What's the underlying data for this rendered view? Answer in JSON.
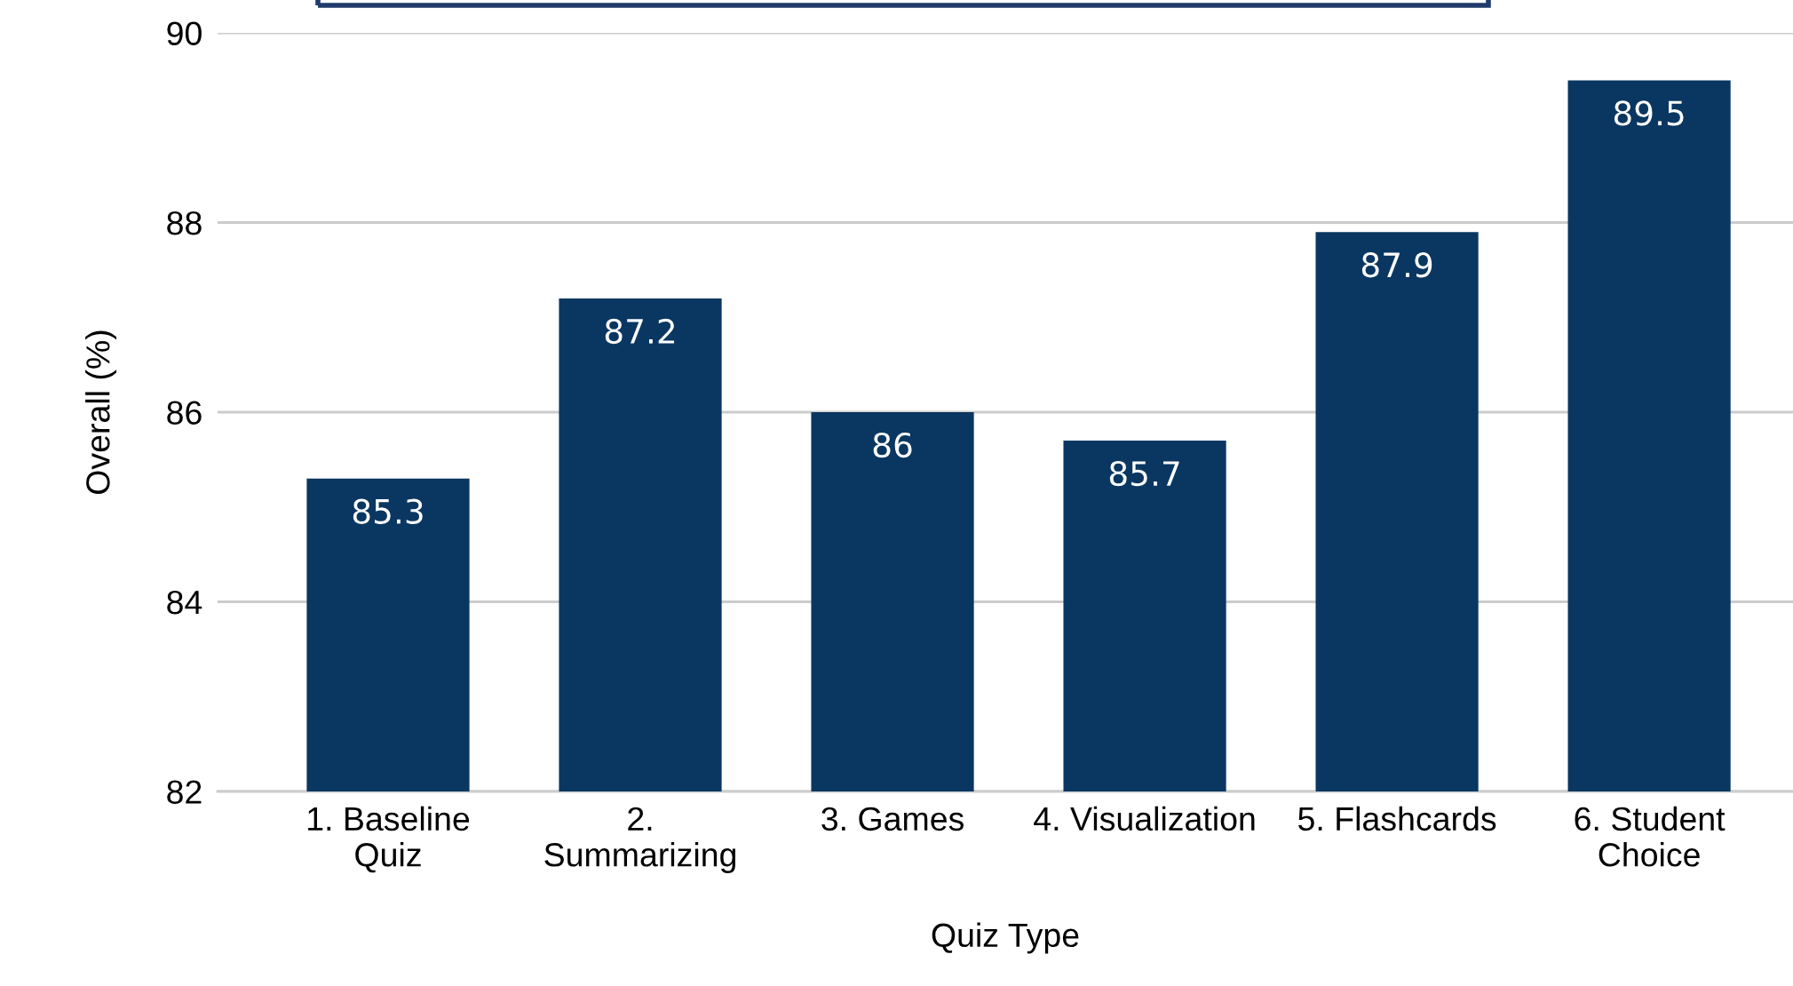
{
  "chart_data": {
    "type": "bar",
    "xlabel": "Quiz Type",
    "ylabel": "Overall (%)",
    "categories": [
      "1. Baseline\nQuiz",
      "2.\nSummarizing",
      "3. Games",
      "4. Visualization",
      "5. Flashcards",
      "6. Student\nChoice"
    ],
    "values": [
      85.3,
      87.2,
      86,
      85.7,
      87.9,
      89.5
    ],
    "color": "#0a3761",
    "ylim": [
      82,
      90
    ],
    "yticks": [
      82,
      84,
      86,
      88,
      90
    ],
    "grid": "y",
    "data_labels": true
  }
}
